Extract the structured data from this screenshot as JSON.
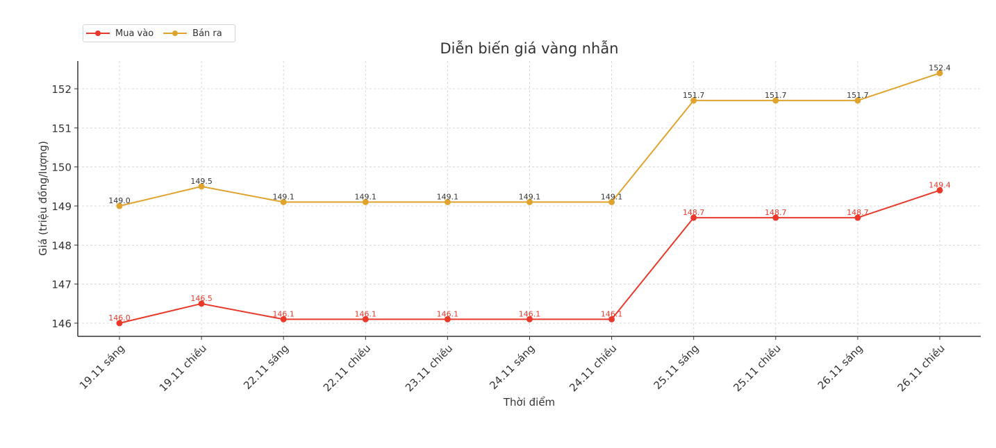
{
  "chart_data": {
    "type": "line",
    "title": "Diễn biến giá vàng nhẫn",
    "xlabel": "Thời điểm",
    "ylabel": "Giá (triệu đồng/lượng)",
    "categories": [
      "19.11 sáng",
      "19.11 chiều",
      "22.11 sáng",
      "22.11 chiều",
      "23.11 chiều",
      "24.11 sáng",
      "24.11 chiều",
      "25.11 sáng",
      "25.11 chiều",
      "26.11 sáng",
      "26.11 chiều"
    ],
    "series": [
      {
        "name": "Mua vào",
        "color": "#e8392b",
        "label_color": "#e8392b",
        "values": [
          146.0,
          146.5,
          146.1,
          146.1,
          146.1,
          146.1,
          146.1,
          148.7,
          148.7,
          148.7,
          149.4
        ]
      },
      {
        "name": "Bán ra",
        "color": "#e0a32e",
        "label_color": "#333333",
        "values": [
          149.0,
          149.5,
          149.1,
          149.1,
          149.1,
          149.1,
          149.1,
          151.7,
          151.7,
          151.7,
          152.4
        ]
      }
    ],
    "yticks": [
      146,
      147,
      148,
      149,
      150,
      151,
      152
    ],
    "ylim": [
      145.68,
      152.72
    ],
    "grid": true,
    "legend_position": "upper left (above plot)",
    "data_labels": true
  },
  "legend": {
    "items": [
      {
        "label": "Mua vào",
        "color": "#e8392b"
      },
      {
        "label": "Bán ra",
        "color": "#e0a32e"
      }
    ]
  }
}
